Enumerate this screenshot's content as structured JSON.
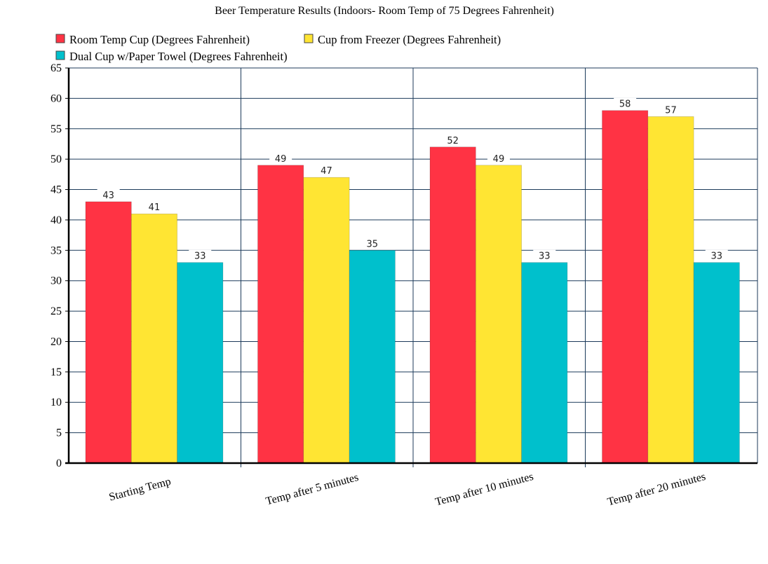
{
  "chart_data": {
    "type": "bar",
    "title": "Beer Temperature Results (Indoors- Room Temp of 75 Degrees Fahrenheit)",
    "xlabel": "",
    "ylabel": "",
    "categories": [
      "Starting Temp",
      "Temp after 5 minutes",
      "Temp after 10 minutes",
      "Temp after 20 minutes"
    ],
    "series": [
      {
        "name": "Room Temp Cup (Degrees Fahrenheit)",
        "values": [
          43,
          49,
          52,
          58
        ],
        "color": "#ff3344"
      },
      {
        "name": "Cup from Freezer (Degrees Fahrenheit)",
        "values": [
          41,
          47,
          49,
          57
        ],
        "color": "#ffe533"
      },
      {
        "name": "Dual Cup w/Paper Towel (Degrees Fahrenheit)",
        "values": [
          33,
          35,
          33,
          33
        ],
        "color": "#00c0cc"
      }
    ],
    "ylim": [
      0,
      65
    ],
    "yticks": [
      0,
      5,
      10,
      15,
      20,
      25,
      30,
      35,
      40,
      45,
      50,
      55,
      60,
      65
    ],
    "grid": true,
    "legend_position": "top-left",
    "data_labels": true
  }
}
